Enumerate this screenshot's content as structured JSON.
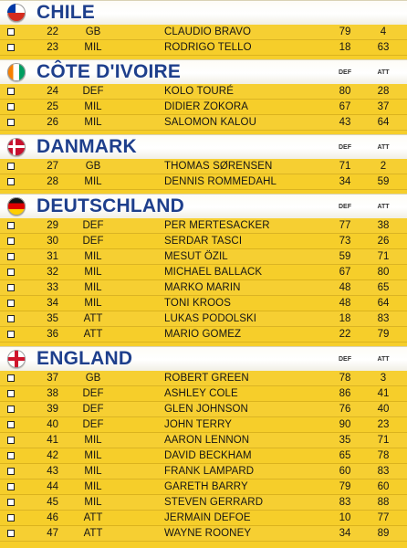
{
  "teams": [
    {
      "name": "CHILE",
      "flag": "flag-chile-icon",
      "col_def": "",
      "col_att": "",
      "players": [
        {
          "num": "22",
          "pos": "GB",
          "name": "CLAUDIO BRAVO",
          "def": "79",
          "att": "4"
        },
        {
          "num": "23",
          "pos": "MIL",
          "name": "RODRIGO TELLO",
          "def": "18",
          "att": "63"
        }
      ]
    },
    {
      "name": "CÔTE D'IVOIRE",
      "flag": "flag-cote-divoire-icon",
      "col_def": "DEF",
      "col_att": "ATT",
      "players": [
        {
          "num": "24",
          "pos": "DEF",
          "name": "KOLO TOURÉ",
          "def": "80",
          "att": "28"
        },
        {
          "num": "25",
          "pos": "MIL",
          "name": "DIDIER ZOKORA",
          "def": "67",
          "att": "37"
        },
        {
          "num": "26",
          "pos": "MIL",
          "name": "SALOMON KALOU",
          "def": "43",
          "att": "64"
        }
      ]
    },
    {
      "name": "DANMARK",
      "flag": "flag-denmark-icon",
      "col_def": "DEF",
      "col_att": "ATT",
      "players": [
        {
          "num": "27",
          "pos": "GB",
          "name": "THOMAS SØRENSEN",
          "def": "71",
          "att": "2"
        },
        {
          "num": "28",
          "pos": "MIL",
          "name": "DENNIS ROMMEDAHL",
          "def": "34",
          "att": "59"
        }
      ]
    },
    {
      "name": "DEUTSCHLAND",
      "flag": "flag-germany-icon",
      "col_def": "DEF",
      "col_att": "ATT",
      "players": [
        {
          "num": "29",
          "pos": "DEF",
          "name": "PER MERTESACKER",
          "def": "77",
          "att": "38"
        },
        {
          "num": "30",
          "pos": "DEF",
          "name": "SERDAR TASCI",
          "def": "73",
          "att": "26"
        },
        {
          "num": "31",
          "pos": "MIL",
          "name": "MESUT ÖZIL",
          "def": "59",
          "att": "71"
        },
        {
          "num": "32",
          "pos": "MIL",
          "name": "MICHAEL BALLACK",
          "def": "67",
          "att": "80"
        },
        {
          "num": "33",
          "pos": "MIL",
          "name": "MARKO MARIN",
          "def": "48",
          "att": "65"
        },
        {
          "num": "34",
          "pos": "MIL",
          "name": "TONI KROOS",
          "def": "48",
          "att": "64"
        },
        {
          "num": "35",
          "pos": "ATT",
          "name": "LUKAS PODOLSKI",
          "def": "18",
          "att": "83"
        },
        {
          "num": "36",
          "pos": "ATT",
          "name": "MARIO GOMEZ",
          "def": "22",
          "att": "79"
        }
      ]
    },
    {
      "name": "ENGLAND",
      "flag": "flag-england-icon",
      "col_def": "DEF",
      "col_att": "ATT",
      "players": [
        {
          "num": "37",
          "pos": "GB",
          "name": "ROBERT GREEN",
          "def": "78",
          "att": "3"
        },
        {
          "num": "38",
          "pos": "DEF",
          "name": "ASHLEY COLE",
          "def": "86",
          "att": "41"
        },
        {
          "num": "39",
          "pos": "DEF",
          "name": "GLEN JOHNSON",
          "def": "76",
          "att": "40"
        },
        {
          "num": "40",
          "pos": "DEF",
          "name": "JOHN TERRY",
          "def": "90",
          "att": "23"
        },
        {
          "num": "41",
          "pos": "MIL",
          "name": "AARON LENNON",
          "def": "35",
          "att": "71"
        },
        {
          "num": "42",
          "pos": "MIL",
          "name": "DAVID BECKHAM",
          "def": "65",
          "att": "78"
        },
        {
          "num": "43",
          "pos": "MIL",
          "name": "FRANK LAMPARD",
          "def": "60",
          "att": "83"
        },
        {
          "num": "44",
          "pos": "MIL",
          "name": "GARETH BARRY",
          "def": "79",
          "att": "60"
        },
        {
          "num": "45",
          "pos": "MIL",
          "name": "STEVEN GERRARD",
          "def": "83",
          "att": "88"
        },
        {
          "num": "46",
          "pos": "ATT",
          "name": "JERMAIN DEFOE",
          "def": "10",
          "att": "77"
        },
        {
          "num": "47",
          "pos": "ATT",
          "name": "WAYNE ROONEY",
          "def": "34",
          "att": "89"
        }
      ]
    }
  ],
  "colors": {
    "background": "#f6ce2a",
    "team_name": "#1e3f8c",
    "header_band": "#ffffff"
  }
}
